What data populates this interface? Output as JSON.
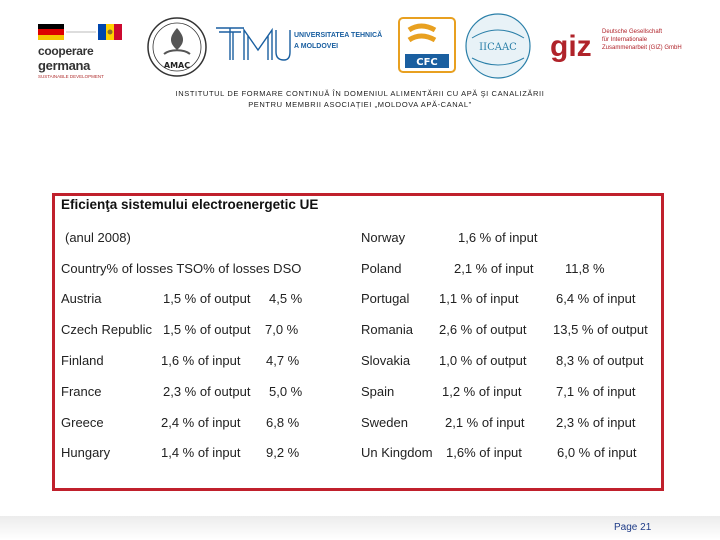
{
  "logos": {
    "cooperare": {
      "line1": "cooperare",
      "line2": "germana",
      "line3": "SUSTAINABLE DEVELOPMENT"
    },
    "amac": {
      "label": "AMAC"
    },
    "utm": {
      "line1": "UNIVERSITATEA TEHNICĂ",
      "line2": "A MOLDOVEI"
    },
    "cfc": {
      "label": "CFC"
    },
    "iicaac": {
      "label": "IICAAC"
    },
    "giz": {
      "mark": "giz",
      "line1": "Deutsche Gesellschaft",
      "line2": "für Internationale",
      "line3": "Zusammenarbeit (GIZ) GmbH"
    }
  },
  "header": {
    "line1": "INSTITUTUL DE FORMARE CONTINUĂ ÎN DOMENIUL ALIMENTĂRII CU APĂ ŞI CANALIZĂRII",
    "line2": "PENTRU MEMBRII ASOCIAȚIEI „MOLDOVA APĂ-CANAL”"
  },
  "slide": {
    "title": "Eficienţa sistemului electroenergetic UE",
    "year_note": "(anul 2008)",
    "header_row": "Country% of losses TSO% of losses DSO",
    "left_rows": [
      {
        "country": "Austria",
        "tso": "1,5 % of output",
        "dso": "4,5 %"
      },
      {
        "country": "Czech Republic",
        "tso": "1,5 % of output",
        "dso": "7,0 %"
      },
      {
        "country": "Finland",
        "tso": "1,6 % of input",
        "dso": "4,7 %"
      },
      {
        "country": "France",
        "tso": "2,3 % of output",
        "dso": "5,0 %"
      },
      {
        "country": "Greece",
        "tso": "2,4 % of input",
        "dso": "6,8 %"
      },
      {
        "country": "Hungary",
        "tso": "1,4 % of input",
        "dso": "9,2 %"
      }
    ],
    "right_rows": [
      {
        "country": "Norway",
        "tso": "1,6 % of input",
        "dso": ""
      },
      {
        "country": "Poland",
        "tso": "2,1 % of input",
        "dso": "11,8 %"
      },
      {
        "country": "Portugal",
        "tso": "1,1 % of input",
        "dso": "6,4 % of input"
      },
      {
        "country": "Romania",
        "tso": "2,6 % of output",
        "dso": "13,5 % of output"
      },
      {
        "country": "Slovakia",
        "tso": "1,0 % of output",
        "dso": "8,3 % of output"
      },
      {
        "country": "Spain",
        "tso": "1,2 % of input",
        "dso": "7,1 % of input"
      },
      {
        "country": "Sweden",
        "tso": "2,1 % of input",
        "dso": "2,3 % of input"
      },
      {
        "country": "Un Kingdom",
        "tso": "1,6% of input",
        "dso": "6,0 % of input"
      }
    ]
  },
  "footer": {
    "page": "Page 21"
  },
  "colors": {
    "frame": "#c0202c",
    "page_number": "#1f3c88",
    "utm_blue": "#1a5fa0",
    "giz_red": "#b0232a"
  }
}
